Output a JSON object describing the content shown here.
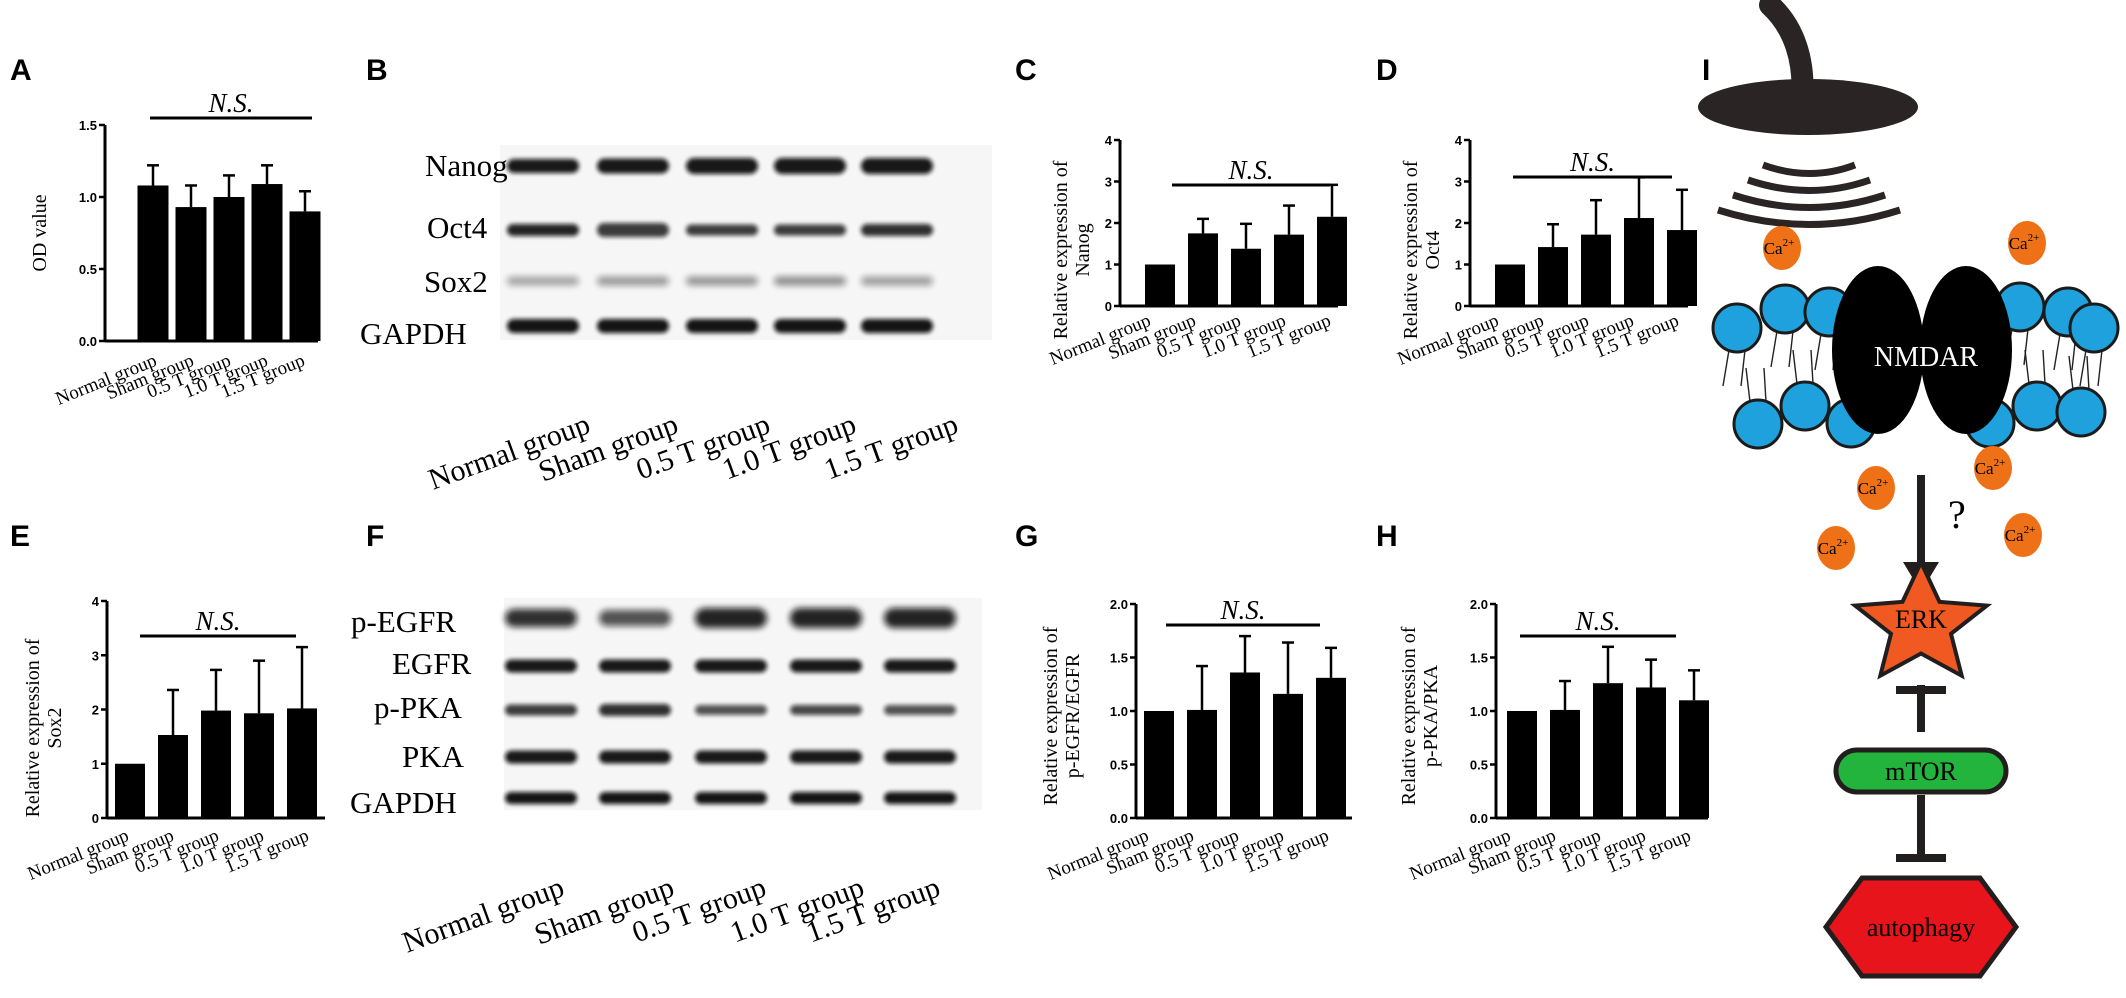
{
  "panel_labels": [
    "A",
    "B",
    "C",
    "D",
    "E",
    "F",
    "G",
    "H",
    "I"
  ],
  "group_names": [
    "Normal group",
    "Sham group",
    "0.5 T group",
    "1.0 T group",
    "1.5 T group"
  ],
  "chart_data": [
    {
      "id": "A",
      "type": "bar",
      "categories": [
        "Normal group",
        "Sham group",
        "0.5 T group",
        "1.0 T group",
        "1.5 T group"
      ],
      "values": [
        1.08,
        0.93,
        1.0,
        1.09,
        0.9
      ],
      "errors": [
        0.14,
        0.15,
        0.15,
        0.13,
        0.14
      ],
      "ylabel": "OD value",
      "ylim": [
        0,
        1.5
      ],
      "yticks": [
        "0.0",
        "0.5",
        "1.0",
        "1.5"
      ],
      "annotation": "N.S."
    },
    {
      "id": "C",
      "type": "bar",
      "categories": [
        "Normal group",
        "Sham group",
        "0.5 T group",
        "1.0 T group",
        "1.5 T group"
      ],
      "values": [
        1.0,
        1.75,
        1.38,
        1.72,
        2.15
      ],
      "errors": [
        0.0,
        0.35,
        0.6,
        0.7,
        0.77
      ],
      "ylabel": [
        "Relative expression of",
        "Nanog"
      ],
      "ylim": [
        0,
        4
      ],
      "yticks": [
        "0",
        "1",
        "2",
        "3",
        "4"
      ],
      "annotation": "N.S."
    },
    {
      "id": "D",
      "type": "bar",
      "categories": [
        "Normal group",
        "Sham group",
        "0.5 T group",
        "1.0 T group",
        "1.5 T group"
      ],
      "values": [
        1.0,
        1.42,
        1.72,
        2.12,
        1.83
      ],
      "errors": [
        0.0,
        0.55,
        0.83,
        0.98,
        0.97
      ],
      "ylabel": [
        "Relative expression of",
        "Oct4"
      ],
      "ylim": [
        0,
        4
      ],
      "yticks": [
        "0",
        "1",
        "2",
        "3",
        "4"
      ],
      "annotation": "N.S."
    },
    {
      "id": "E",
      "type": "bar",
      "categories": [
        "Normal group",
        "Sham group",
        "0.5 T group",
        "1.0 T group",
        "1.5 T group"
      ],
      "values": [
        1.0,
        1.53,
        1.98,
        1.93,
        2.02
      ],
      "errors": [
        0.0,
        0.83,
        0.75,
        0.97,
        1.13
      ],
      "ylabel": [
        "Relative expression of",
        "Sox2"
      ],
      "ylim": [
        0,
        4
      ],
      "yticks": [
        "0",
        "1",
        "2",
        "3",
        "4"
      ],
      "annotation": "N.S."
    },
    {
      "id": "G",
      "type": "bar",
      "categories": [
        "Normal group",
        "Sham group",
        "0.5 T group",
        "1.0 T group",
        "1.5 T group"
      ],
      "values": [
        1.0,
        1.01,
        1.36,
        1.16,
        1.31
      ],
      "errors": [
        0.0,
        0.41,
        0.34,
        0.48,
        0.28
      ],
      "ylabel": [
        "Relative expression of",
        "p-EGFR/EGFR"
      ],
      "ylim": [
        0,
        2.0
      ],
      "yticks": [
        "0.0",
        "0.5",
        "1.0",
        "1.5",
        "2.0"
      ],
      "annotation": "N.S."
    },
    {
      "id": "H",
      "type": "bar",
      "categories": [
        "Normal group",
        "Sham group",
        "0.5 T group",
        "1.0 T group",
        "1.5 T group"
      ],
      "values": [
        1.0,
        1.01,
        1.26,
        1.22,
        1.1
      ],
      "errors": [
        0.0,
        0.27,
        0.34,
        0.26,
        0.28
      ],
      "ylabel": [
        "Relative expression of",
        "p-PKA/PKA"
      ],
      "ylim": [
        0,
        2.0
      ],
      "yticks": [
        "0.0",
        "0.5",
        "1.0",
        "1.5",
        "2.0"
      ],
      "annotation": "N.S."
    }
  ],
  "blots": {
    "B": {
      "proteins": [
        "Nanog",
        "Oct4",
        "Sox2",
        "GAPDH"
      ]
    },
    "F": {
      "proteins": [
        "p-EGFR",
        "EGFR",
        "p-PKA",
        "PKA",
        "GAPDH"
      ]
    }
  },
  "schematic": {
    "receptor": "NMDAR",
    "ion": "Ca",
    "ion_charge": "2+",
    "unknown": "?",
    "pathway": [
      "ERK",
      "mTOR",
      "autophagy"
    ],
    "colors": {
      "membrane_head": "#1ea1dc",
      "calcium": "#ee7118",
      "erk": "#f05a22",
      "mtor": "#22b43c",
      "autophagy": "#e8141b"
    }
  }
}
